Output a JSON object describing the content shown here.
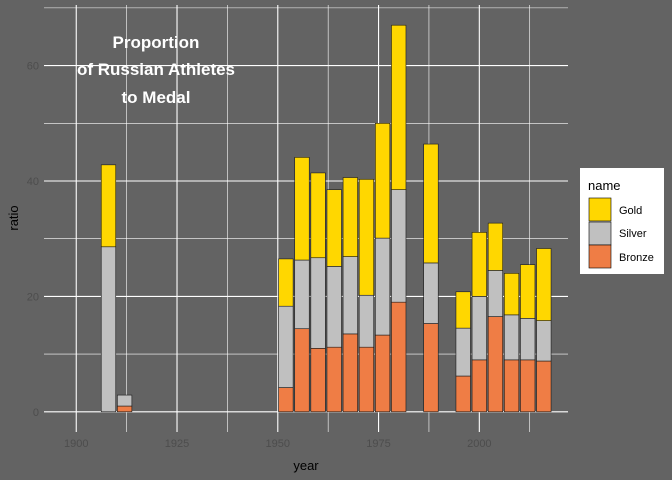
{
  "chart_data": {
    "type": "bar",
    "stacked": true,
    "title_lines": [
      "Proportion",
      "of Russian Athletes",
      "to Medal"
    ],
    "xlabel": "year",
    "ylabel": "ratio",
    "xlim": [
      1892,
      2022
    ],
    "ylim": [
      -3.5,
      70.5
    ],
    "xticks": [
      1900,
      1925,
      1950,
      1975,
      2000
    ],
    "yticks": [
      0,
      20,
      40,
      60
    ],
    "grid": true,
    "legend": {
      "title": "name",
      "position": "right",
      "order": [
        "Gold",
        "Silver",
        "Bronze"
      ]
    },
    "colors": {
      "Gold": "#FFD700",
      "Silver": "#C0C0C0",
      "Bronze": "#EF7D45"
    },
    "bar_width_years": 3.6,
    "x": [
      1900,
      1908,
      1912,
      1924,
      1952,
      1956,
      1960,
      1964,
      1968,
      1972,
      1976,
      1980,
      1988,
      1996,
      2000,
      2004,
      2008,
      2012,
      2016
    ],
    "series": [
      {
        "name": "Bronze",
        "values": [
          0,
          0,
          1,
          0,
          4.2,
          14.4,
          11,
          11.2,
          13.5,
          11.2,
          13.3,
          19,
          15.3,
          6.2,
          9,
          16.5,
          9,
          9,
          8.8
        ]
      },
      {
        "name": "Silver",
        "values": [
          0,
          28.6,
          1.9,
          0,
          14.1,
          11.9,
          15.7,
          14,
          13.4,
          9,
          16.8,
          19.5,
          10.5,
          8.3,
          11,
          8,
          7.8,
          7.2,
          7
        ]
      },
      {
        "name": "Gold",
        "values": [
          0,
          14.2,
          0,
          0,
          8.2,
          17.8,
          14.7,
          13.3,
          13.7,
          20.1,
          19.9,
          28.5,
          20.6,
          6.3,
          11.1,
          8.2,
          7.2,
          9.3,
          12.5
        ]
      }
    ]
  }
}
